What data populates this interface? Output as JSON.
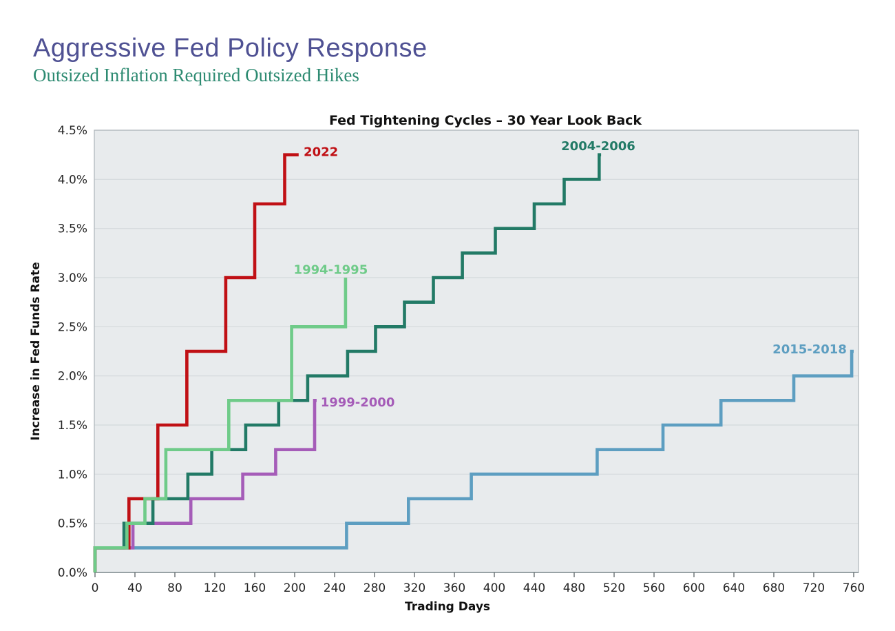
{
  "header": {
    "title": "Aggressive Fed Policy Response",
    "subtitle": "Outsized Inflation Required Outsized Hikes",
    "title_color": "#4F5193",
    "subtitle_color": "#2E8B72"
  },
  "chart_data": {
    "type": "line",
    "subtype": "step-post",
    "title": "Fed Tightening Cycles – 30 Year Look Back",
    "xlabel": "Trading Days",
    "ylabel": "Increase in Fed Funds Rate",
    "xlim": [
      0,
      760
    ],
    "ylim": [
      0,
      4.5
    ],
    "x_ticks": [
      0,
      40,
      80,
      120,
      160,
      200,
      240,
      280,
      320,
      360,
      400,
      440,
      480,
      520,
      560,
      600,
      640,
      680,
      720,
      760
    ],
    "y_ticks": [
      0,
      0.5,
      1,
      1.5,
      2,
      2.5,
      3,
      3.5,
      4,
      4.5
    ],
    "y_tick_format": "percent_one_decimal",
    "grid": "horizontal",
    "legend_position": "inline-labels",
    "colors": {
      "plot_bg": "#E8EBED",
      "grid": "#D3D9DC",
      "border": "#ADB5B9",
      "axis": "#7F8A8E",
      "tick": "#5A6265",
      "text": "#262626",
      "title": "#111111"
    },
    "series": [
      {
        "name": "2015-2018",
        "color": "#5D9EC1",
        "label": {
          "text": "2015-2018",
          "day": 753,
          "pct": 2.27,
          "anchor": "end"
        },
        "points": [
          [
            0,
            0
          ],
          [
            0,
            0.25
          ],
          [
            252,
            0.25
          ],
          [
            252,
            0.5
          ],
          [
            314,
            0.5
          ],
          [
            314,
            0.75
          ],
          [
            377,
            0.75
          ],
          [
            377,
            1.0
          ],
          [
            503,
            1.0
          ],
          [
            503,
            1.25
          ],
          [
            569,
            1.25
          ],
          [
            569,
            1.5
          ],
          [
            627,
            1.5
          ],
          [
            627,
            1.75
          ],
          [
            700,
            1.75
          ],
          [
            700,
            2.0
          ],
          [
            758,
            2.0
          ],
          [
            758,
            2.25
          ],
          [
            760,
            2.25
          ]
        ]
      },
      {
        "name": "1999-2000",
        "color": "#A55CB8",
        "label": {
          "text": "1999-2000",
          "day": 226,
          "pct": 1.73,
          "anchor": "start"
        },
        "points": [
          [
            0,
            0
          ],
          [
            0,
            0.25
          ],
          [
            38,
            0.25
          ],
          [
            38,
            0.5
          ],
          [
            96,
            0.5
          ],
          [
            96,
            0.75
          ],
          [
            148,
            0.75
          ],
          [
            148,
            1.0
          ],
          [
            181,
            1.0
          ],
          [
            181,
            1.25
          ],
          [
            220,
            1.25
          ],
          [
            220,
            1.75
          ],
          [
            222,
            1.75
          ]
        ]
      },
      {
        "name": "2004-2006",
        "color": "#227A66",
        "label": {
          "text": "2004-2006",
          "day": 467,
          "pct": 4.34,
          "anchor": "start"
        },
        "points": [
          [
            0,
            0
          ],
          [
            0,
            0.25
          ],
          [
            29,
            0.25
          ],
          [
            29,
            0.5
          ],
          [
            58,
            0.5
          ],
          [
            58,
            0.75
          ],
          [
            93,
            0.75
          ],
          [
            93,
            1.0
          ],
          [
            117,
            1.0
          ],
          [
            117,
            1.25
          ],
          [
            151,
            1.25
          ],
          [
            151,
            1.5
          ],
          [
            184,
            1.5
          ],
          [
            184,
            1.75
          ],
          [
            213,
            1.75
          ],
          [
            213,
            2.0
          ],
          [
            253,
            2.0
          ],
          [
            253,
            2.25
          ],
          [
            281,
            2.25
          ],
          [
            281,
            2.5
          ],
          [
            310,
            2.5
          ],
          [
            310,
            2.75
          ],
          [
            339,
            2.75
          ],
          [
            339,
            3.0
          ],
          [
            368,
            3.0
          ],
          [
            368,
            3.25
          ],
          [
            401,
            3.25
          ],
          [
            401,
            3.5
          ],
          [
            440,
            3.5
          ],
          [
            440,
            3.75
          ],
          [
            470,
            3.75
          ],
          [
            470,
            4.0
          ],
          [
            505,
            4.0
          ],
          [
            505,
            4.25
          ],
          [
            507,
            4.25
          ]
        ]
      },
      {
        "name": "2022",
        "color": "#C01015",
        "label": {
          "text": "2022",
          "day": 209,
          "pct": 4.28,
          "anchor": "start"
        },
        "points": [
          [
            0,
            0
          ],
          [
            0,
            0.25
          ],
          [
            34,
            0.25
          ],
          [
            34,
            0.75
          ],
          [
            63,
            0.75
          ],
          [
            63,
            1.5
          ],
          [
            92,
            1.5
          ],
          [
            92,
            2.25
          ],
          [
            131,
            2.25
          ],
          [
            131,
            3.0
          ],
          [
            160,
            3.0
          ],
          [
            160,
            3.75
          ],
          [
            190,
            3.75
          ],
          [
            190,
            4.25
          ],
          [
            204,
            4.25
          ]
        ]
      },
      {
        "name": "1994-1995",
        "color": "#6FCB89",
        "label": {
          "text": "1994-1995",
          "day": 199,
          "pct": 3.08,
          "anchor": "start"
        },
        "points": [
          [
            0,
            0
          ],
          [
            0,
            0.25
          ],
          [
            32,
            0.25
          ],
          [
            32,
            0.5
          ],
          [
            50,
            0.5
          ],
          [
            50,
            0.75
          ],
          [
            71,
            0.75
          ],
          [
            71,
            1.25
          ],
          [
            134,
            1.25
          ],
          [
            134,
            1.75
          ],
          [
            197,
            1.75
          ],
          [
            197,
            2.5
          ],
          [
            251,
            2.5
          ],
          [
            251,
            3.0
          ]
        ]
      }
    ]
  }
}
